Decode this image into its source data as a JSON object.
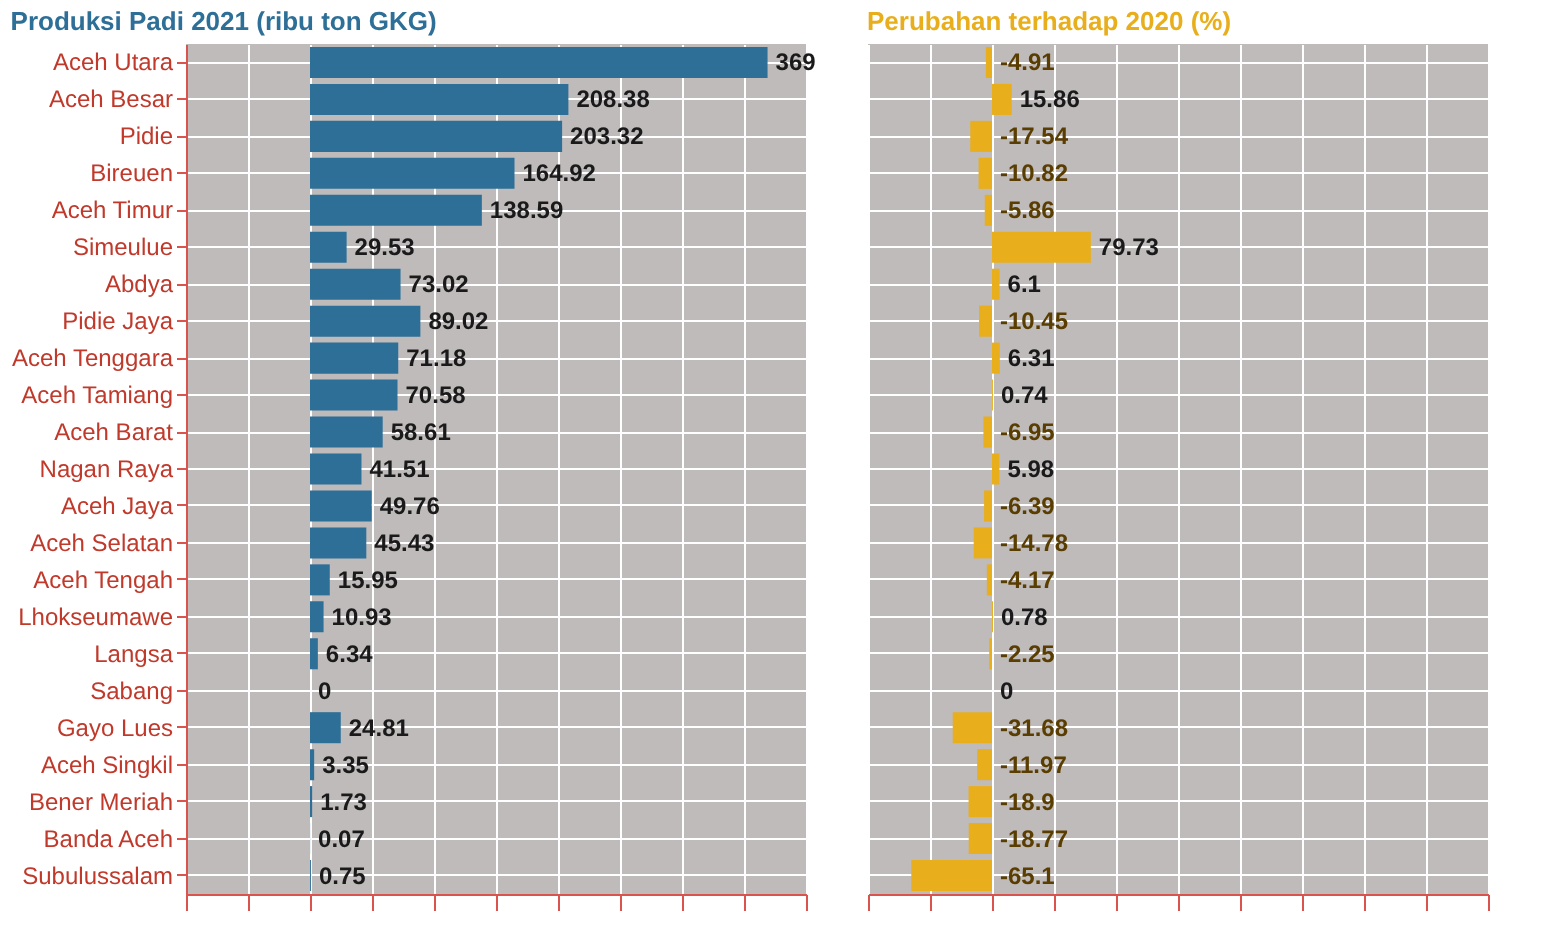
{
  "chart_data": [
    {
      "type": "bar",
      "orientation": "horizontal",
      "title": "Produksi Padi 2021 (ribu ton GKG)",
      "categories": [
        "Aceh Utara",
        "Aceh Besar",
        "Pidie",
        "Bireuen",
        "Aceh Timur",
        "Simeulue",
        "Abdya",
        "Pidie Jaya",
        "Aceh Tenggara",
        "Aceh Tamiang",
        "Aceh Barat",
        "Nagan Raya",
        "Aceh Jaya",
        "Aceh Selatan",
        "Aceh Tengah",
        "Lhokseumawe",
        "Langsa",
        "Sabang",
        "Gayo Lues",
        "Aceh Singkil",
        "Bener Meriah",
        "Banda Aceh",
        "Subulussalam"
      ],
      "values": [
        369,
        208.38,
        203.32,
        164.92,
        138.59,
        29.53,
        73.02,
        89.02,
        71.18,
        70.58,
        58.61,
        41.51,
        49.76,
        45.43,
        15.95,
        10.93,
        6.34,
        0,
        24.81,
        3.35,
        1.73,
        0.07,
        0.75
      ],
      "color": "#2e6f97",
      "data_labels": true,
      "xlim": [
        -100,
        400
      ],
      "xticks": [
        {
          "value": -100,
          "label": null
        },
        {
          "value": -50,
          "label": null
        },
        {
          "value": 0,
          "label": null
        },
        {
          "value": 50,
          "label": null
        },
        {
          "value": 100,
          "label": null
        },
        {
          "value": 150,
          "label": null
        },
        {
          "value": 200,
          "label": null
        },
        {
          "value": 250,
          "label": null
        },
        {
          "value": 300,
          "label": null
        },
        {
          "value": 350,
          "label": null
        },
        {
          "value": 400,
          "label": null
        }
      ],
      "grid": true,
      "tick_labels": "y"
    },
    {
      "type": "bar",
      "orientation": "horizontal",
      "title": "Perubahan terhadap 2020 (%)",
      "categories": [
        null,
        null,
        null,
        null,
        null,
        null,
        null,
        null,
        null,
        null,
        null,
        null,
        null,
        null,
        null,
        null,
        null,
        null,
        null,
        null,
        null,
        null,
        null
      ],
      "values": [
        -4.91,
        15.86,
        -17.54,
        -10.82,
        -5.86,
        79.73,
        6.1,
        -10.45,
        6.31,
        0.74,
        -6.95,
        5.98,
        -6.39,
        -14.78,
        -4.17,
        0.78,
        -2.25,
        0,
        -31.68,
        -11.97,
        -18.9,
        -18.77,
        -65.1
      ],
      "color": "#e8ae1c",
      "data_labels": true,
      "xlim": [
        -100,
        400
      ],
      "xticks": [
        {
          "value": -100,
          "label": null
        },
        {
          "value": -50,
          "label": null
        },
        {
          "value": 0,
          "label": null
        },
        {
          "value": 50,
          "label": null
        },
        {
          "value": 100,
          "label": null
        },
        {
          "value": 150,
          "label": null
        },
        {
          "value": 200,
          "label": null
        },
        {
          "value": 250,
          "label": null
        },
        {
          "value": 300,
          "label": null
        },
        {
          "value": 350,
          "label": null
        },
        {
          "value": 400,
          "label": null
        }
      ],
      "grid": true,
      "tick_labels": false
    }
  ]
}
